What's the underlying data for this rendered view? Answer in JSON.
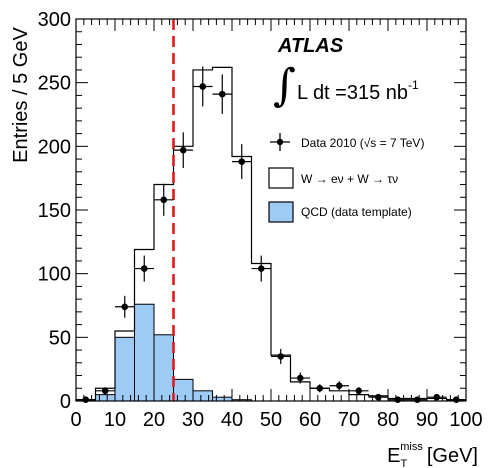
{
  "chart_data": {
    "type": "bar",
    "title": "",
    "xlabel_main": "E",
    "xlabel_sub": "T",
    "xlabel_sup": "miss",
    "xlabel_unit": "[GeV]",
    "ylabel": "Entries / 5 GeV",
    "xlim": [
      0,
      100
    ],
    "ylim": [
      0,
      300
    ],
    "x_ticks": [
      "0",
      "10",
      "20",
      "30",
      "40",
      "50",
      "60",
      "70",
      "80",
      "90",
      "100"
    ],
    "y_ticks": [
      "0",
      "50",
      "100",
      "150",
      "200",
      "250",
      "300"
    ],
    "bin_edges": [
      0,
      5,
      10,
      15,
      20,
      25,
      30,
      35,
      40,
      45,
      50,
      55,
      60,
      65,
      70,
      75,
      80,
      85,
      90,
      95,
      100
    ],
    "series": [
      {
        "name": "W → eν + W → τν",
        "style": "histogram-outline",
        "color": "#000000",
        "values": [
          1,
          10,
          55,
          119,
          170,
          200,
          260,
          262,
          192,
          108,
          36,
          15,
          10,
          8,
          5,
          4,
          2,
          2,
          2,
          1
        ]
      },
      {
        "name": "QCD (data template)",
        "style": "histogram-filled",
        "color": "#9ecbf5",
        "values": [
          0,
          5,
          50,
          76,
          52,
          17,
          8,
          3,
          1,
          0,
          0,
          0,
          0,
          0,
          0,
          0,
          0,
          0,
          0,
          0
        ]
      },
      {
        "name": "Data 2010 (√s = 7 TeV)",
        "style": "points-with-errors",
        "color": "#000000",
        "x": [
          2.5,
          7.5,
          12.5,
          17.5,
          22.5,
          27.5,
          32.5,
          37.5,
          42.5,
          47.5,
          52.5,
          57.5,
          62.5,
          67.5,
          72.5,
          77.5,
          82.5,
          87.5,
          92.5,
          97.5
        ],
        "values": [
          1,
          8,
          74,
          104,
          158,
          197,
          247,
          241,
          188,
          104,
          35,
          18,
          10,
          12,
          8,
          3,
          1,
          1,
          3,
          1
        ]
      }
    ],
    "cut_line": {
      "x": 25,
      "color": "#e01b1b",
      "style": "dashed"
    },
    "annotations": {
      "experiment": "ATLAS",
      "lumi_prefix": "L dt =315 nb",
      "lumi_sup": "-1"
    },
    "legend": {
      "placement": "top-right",
      "entries": [
        {
          "label": "Data 2010 (√s = 7 TeV)"
        },
        {
          "label": "W → eν + W → τν"
        },
        {
          "label": "QCD (data template)"
        }
      ]
    }
  }
}
